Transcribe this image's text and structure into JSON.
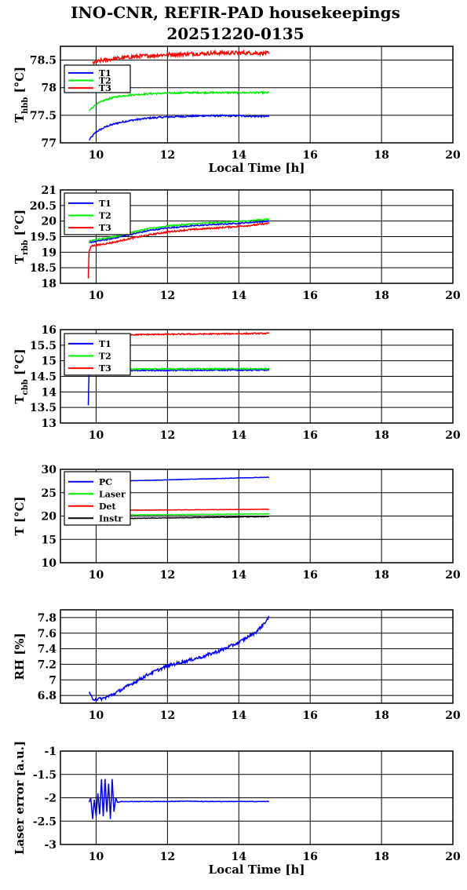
{
  "title_line1": "INO-CNR, REFIR-PAD housekeepings",
  "title_line2": "20251220-0135",
  "chart_data": [
    {
      "type": "line",
      "ylabel_main": "T",
      "ylabel_sub": "hbb",
      "ylabel_unit": " [°C]",
      "xlabel": "Local Time [h]",
      "xlim": [
        9,
        20
      ],
      "xticks": [
        10,
        12,
        14,
        16,
        18,
        20
      ],
      "ylim": [
        77,
        78.75
      ],
      "yticks": [
        77,
        77.5,
        78,
        78.5
      ],
      "ytick_labels": [
        "77",
        "77.5",
        "78",
        "78.5"
      ],
      "grid": true,
      "legend": "top-left",
      "series": [
        {
          "name": "T1",
          "color": "#0000ff",
          "x": [
            9.8,
            10.0,
            10.3,
            10.6,
            11.0,
            11.5,
            12.0,
            12.5,
            13.0,
            13.5,
            14.0,
            14.5,
            14.85
          ],
          "y": [
            77.05,
            77.2,
            77.3,
            77.36,
            77.41,
            77.45,
            77.47,
            77.48,
            77.49,
            77.49,
            77.49,
            77.48,
            77.48
          ],
          "noise": 0.015
        },
        {
          "name": "T2",
          "color": "#00ee00",
          "x": [
            9.8,
            10.0,
            10.3,
            10.6,
            11.0,
            11.5,
            12.0,
            12.5,
            13.0,
            13.5,
            14.0,
            14.5,
            14.85
          ],
          "y": [
            77.58,
            77.7,
            77.79,
            77.84,
            77.87,
            77.89,
            77.9,
            77.91,
            77.91,
            77.91,
            77.91,
            77.91,
            77.91
          ],
          "noise": 0.015
        },
        {
          "name": "T3",
          "color": "#ff0000",
          "x": [
            9.9,
            10.2,
            10.6,
            11.0,
            11.5,
            12.0,
            12.5,
            13.0,
            13.5,
            14.0,
            14.5,
            14.85
          ],
          "y": [
            78.45,
            78.5,
            78.53,
            78.56,
            78.58,
            78.6,
            78.61,
            78.62,
            78.63,
            78.63,
            78.63,
            78.62
          ],
          "noise": 0.035
        }
      ]
    },
    {
      "type": "line",
      "ylabel_main": "T",
      "ylabel_sub": "rbb",
      "ylabel_unit": " [°C]",
      "xlabel": "",
      "xlim": [
        9,
        20
      ],
      "xticks": [
        10,
        12,
        14,
        16,
        18,
        20
      ],
      "ylim": [
        18,
        21
      ],
      "yticks": [
        18,
        18.5,
        19,
        19.5,
        20,
        20.5,
        21
      ],
      "ytick_labels": [
        "18",
        "18.5",
        "19",
        "19.5",
        "20",
        "20.5",
        "21"
      ],
      "grid": true,
      "legend": "top-left",
      "series": [
        {
          "name": "T1",
          "color": "#0000ff",
          "x": [
            9.8,
            9.85,
            10.0,
            10.5,
            11.0,
            11.5,
            12.0,
            12.5,
            13.0,
            13.5,
            14.0,
            14.5,
            14.85
          ],
          "y": [
            19.3,
            19.32,
            19.35,
            19.45,
            19.58,
            19.7,
            19.78,
            19.83,
            19.87,
            19.9,
            19.93,
            19.97,
            20.0
          ],
          "noise": 0.02
        },
        {
          "name": "T2",
          "color": "#00ee00",
          "x": [
            9.8,
            9.85,
            10.0,
            10.5,
            11.0,
            11.5,
            12.0,
            12.5,
            13.0,
            13.5,
            14.0,
            14.5,
            14.85
          ],
          "y": [
            19.35,
            19.37,
            19.4,
            19.5,
            19.64,
            19.76,
            19.84,
            19.89,
            19.93,
            19.96,
            19.99,
            20.03,
            20.06
          ],
          "noise": 0.02
        },
        {
          "name": "T3",
          "color": "#ff0000",
          "x": [
            9.78,
            9.8,
            9.85,
            10.0,
            10.5,
            11.0,
            11.5,
            12.0,
            12.5,
            13.0,
            13.5,
            14.0,
            14.5,
            14.85
          ],
          "y": [
            18.15,
            19.0,
            19.2,
            19.22,
            19.32,
            19.45,
            19.56,
            19.65,
            19.71,
            19.75,
            19.79,
            19.83,
            19.88,
            19.93
          ],
          "noise": 0.025
        }
      ]
    },
    {
      "type": "line",
      "ylabel_main": "T",
      "ylabel_sub": "cbb",
      "ylabel_unit": " [°C]",
      "xlabel": "",
      "xlim": [
        9,
        20
      ],
      "xticks": [
        10,
        12,
        14,
        16,
        18,
        20
      ],
      "ylim": [
        13,
        16
      ],
      "yticks": [
        13,
        13.5,
        14,
        14.5,
        15,
        15.5,
        16
      ],
      "ytick_labels": [
        "13",
        "13.5",
        "14",
        "14.5",
        "15",
        "15.5",
        "16"
      ],
      "grid": true,
      "legend": "top-left",
      "series": [
        {
          "name": "T1",
          "color": "#0000ff",
          "x": [
            9.78,
            9.8,
            9.85,
            10.0,
            11.0,
            12.0,
            13.0,
            14.0,
            14.85
          ],
          "y": [
            13.55,
            14.6,
            14.68,
            14.68,
            14.69,
            14.69,
            14.7,
            14.7,
            14.7
          ],
          "noise": 0.02
        },
        {
          "name": "T2",
          "color": "#00ee00",
          "x": [
            9.8,
            9.85,
            10.0,
            11.0,
            12.0,
            13.0,
            14.0,
            14.85
          ],
          "y": [
            14.7,
            14.72,
            14.73,
            14.73,
            14.74,
            14.74,
            14.74,
            14.74
          ],
          "noise": 0.02
        },
        {
          "name": "T3",
          "color": "#ff0000",
          "x": [
            9.8,
            9.85,
            10.0,
            11.0,
            12.0,
            13.0,
            14.0,
            14.85
          ],
          "y": [
            15.8,
            15.82,
            15.83,
            15.84,
            15.85,
            15.86,
            15.87,
            15.88
          ],
          "noise": 0.02
        }
      ]
    },
    {
      "type": "line",
      "ylabel_main": "T [°C]",
      "ylabel_sub": "",
      "ylabel_unit": "",
      "xlabel": "",
      "xlim": [
        9,
        20
      ],
      "xticks": [
        10,
        12,
        14,
        16,
        18,
        20
      ],
      "ylim": [
        10,
        30
      ],
      "yticks": [
        10,
        15,
        20,
        25,
        30
      ],
      "ytick_labels": [
        "10",
        "15",
        "20",
        "25",
        "30"
      ],
      "grid": true,
      "legend": "top-left",
      "series": [
        {
          "name": "PC",
          "color": "#0000ff",
          "x": [
            9.8,
            10.5,
            11.0,
            12.0,
            13.0,
            14.0,
            14.85
          ],
          "y": [
            27.3,
            27.45,
            27.55,
            27.75,
            27.95,
            28.15,
            28.3
          ],
          "noise": 0.04
        },
        {
          "name": "Laser",
          "color": "#00ee00",
          "x": [
            9.8,
            10.5,
            11.0,
            12.0,
            13.0,
            14.0,
            14.85
          ],
          "y": [
            20.1,
            20.2,
            20.25,
            20.3,
            20.35,
            20.4,
            20.45
          ],
          "noise": 0.05
        },
        {
          "name": "Det",
          "color": "#ff0000",
          "x": [
            9.8,
            10.5,
            11.0,
            12.0,
            13.0,
            14.0,
            14.85
          ],
          "y": [
            21.1,
            21.2,
            21.25,
            21.3,
            21.35,
            21.4,
            21.45
          ],
          "noise": 0.04
        },
        {
          "name": "Instr",
          "color": "#000000",
          "x": [
            9.8,
            10.5,
            11.0,
            12.0,
            13.0,
            14.0,
            14.85
          ],
          "y": [
            19.3,
            19.4,
            19.5,
            19.6,
            19.7,
            19.8,
            19.9
          ],
          "noise": 0.06
        }
      ]
    },
    {
      "type": "line",
      "ylabel_main": "RH [%]",
      "ylabel_sub": "",
      "ylabel_unit": "",
      "xlabel": "",
      "xlim": [
        9,
        20
      ],
      "xticks": [
        10,
        12,
        14,
        16,
        18,
        20
      ],
      "ylim": [
        6.7,
        7.9
      ],
      "yticks": [
        6.8,
        7,
        7.2,
        7.4,
        7.6,
        7.8
      ],
      "ytick_labels": [
        "6.8",
        "7",
        "7.2",
        "7.4",
        "7.6",
        "7.8"
      ],
      "grid": true,
      "legend": "none",
      "series": [
        {
          "color": "#0000ff",
          "x": [
            9.8,
            9.9,
            10.0,
            10.2,
            10.5,
            11.0,
            11.5,
            12.0,
            12.5,
            13.0,
            13.5,
            14.0,
            14.5,
            14.85
          ],
          "y": [
            6.83,
            6.76,
            6.75,
            6.76,
            6.82,
            6.95,
            7.08,
            7.18,
            7.24,
            7.3,
            7.38,
            7.48,
            7.62,
            7.8
          ],
          "noise": 0.02
        }
      ]
    },
    {
      "type": "line",
      "ylabel_main": "Laser error [a.u.]",
      "ylabel_sub": "",
      "ylabel_unit": "",
      "xlabel": "Local Time [h]",
      "xlim": [
        9,
        20
      ],
      "xticks": [
        10,
        12,
        14,
        16,
        18,
        20
      ],
      "ylim": [
        -3,
        -1
      ],
      "yticks": [
        -3,
        -2.5,
        -2,
        -1.5,
        -1
      ],
      "ytick_labels": [
        "-3",
        "-2.5",
        "-2",
        "-1.5",
        "-1"
      ],
      "grid": true,
      "legend": "none",
      "series": [
        {
          "color": "#0000ff",
          "x": [
            9.8,
            9.85,
            9.9,
            9.95,
            10.0,
            10.05,
            10.1,
            10.15,
            10.2,
            10.25,
            10.3,
            10.35,
            10.4,
            10.45,
            10.5,
            10.55,
            10.6,
            10.7,
            11.0,
            12.0,
            12.5,
            13.0,
            14.0,
            14.85
          ],
          "y": [
            -2.1,
            -2.0,
            -2.45,
            -2.05,
            -2.4,
            -1.9,
            -2.35,
            -1.6,
            -2.4,
            -1.6,
            -2.3,
            -1.7,
            -2.45,
            -1.6,
            -2.3,
            -2.0,
            -2.1,
            -2.08,
            -2.08,
            -2.08,
            -2.07,
            -2.08,
            -2.08,
            -2.08
          ],
          "noise": 0.006
        }
      ]
    }
  ]
}
